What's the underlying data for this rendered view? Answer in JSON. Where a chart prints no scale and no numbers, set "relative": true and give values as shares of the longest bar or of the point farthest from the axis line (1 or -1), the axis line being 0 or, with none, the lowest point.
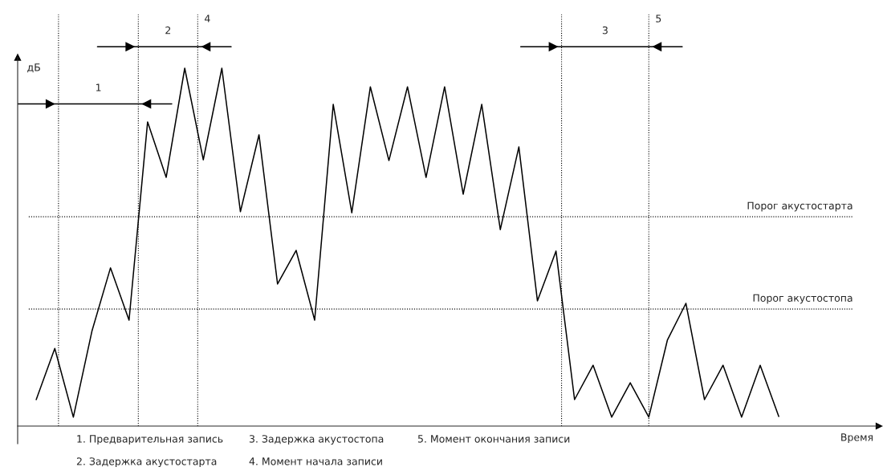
{
  "chart_data": {
    "type": "line",
    "relative": true,
    "ylabel": "дБ",
    "categories": [
      null,
      null,
      null,
      null,
      null,
      null,
      null,
      null,
      null,
      null,
      null,
      null,
      null,
      null,
      null,
      null,
      null,
      null,
      null,
      null,
      null,
      null,
      null,
      null,
      null,
      null,
      null,
      null,
      null,
      null,
      null,
      null,
      null,
      null,
      null,
      null,
      null,
      null,
      null,
      null,
      null
    ],
    "series": [
      {
        "color": "#000000",
        "values": [
          0.074,
          0.217,
          0.025,
          0.265,
          0.442,
          0.296,
          0.85,
          0.695,
          1.0,
          0.744,
          1.0,
          0.599,
          0.814,
          0.397,
          0.491,
          0.296,
          0.899,
          0.596,
          0.948,
          0.742,
          0.948,
          0.695,
          0.948,
          0.648,
          0.899,
          0.549,
          0.78,
          0.35,
          0.489,
          0.074,
          0.17,
          0.025,
          0.121,
          0.025,
          0.24,
          0.343,
          0.074,
          0.17,
          0.025,
          0.17,
          0.027
        ]
      }
    ],
    "line_style": "solid",
    "ref_lines": [
      {
        "axis": "y",
        "value": 0.585,
        "label": "Порог акустостарта",
        "line_style": "dotted",
        "color": "#000000"
      },
      {
        "axis": "y",
        "value": 0.327,
        "label": "Порог акустостопа",
        "line_style": "dotted",
        "color": "#000000"
      }
    ],
    "annotations": [
      "1",
      "2",
      "3",
      "4",
      "5",
      "Время",
      "1. Предварительная запись",
      "2. Задержка акустостарта",
      "3. Задержка акустостопа",
      "4. Момент начала записи",
      "5. Момент окончания записи"
    ]
  }
}
